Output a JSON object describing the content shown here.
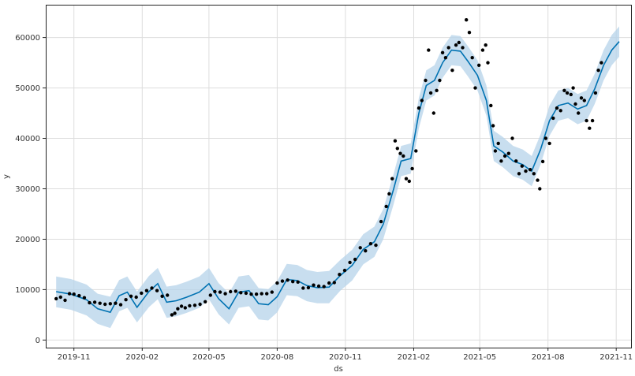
{
  "chart_data": {
    "type": "line",
    "title": "",
    "xlabel": "ds",
    "ylabel": "y",
    "x_range": [
      "2019-09-24",
      "2021-11-21"
    ],
    "ylim": [
      -1500,
      66500
    ],
    "grid": true,
    "x_ticks": [
      {
        "date": "2019-11-01",
        "label": "2019-11"
      },
      {
        "date": "2020-02-01",
        "label": "2020-02"
      },
      {
        "date": "2020-05-01",
        "label": "2020-05"
      },
      {
        "date": "2020-08-01",
        "label": "2020-08"
      },
      {
        "date": "2020-11-01",
        "label": "2020-11"
      },
      {
        "date": "2021-02-01",
        "label": "2021-02"
      },
      {
        "date": "2021-05-01",
        "label": "2021-05"
      },
      {
        "date": "2021-08-01",
        "label": "2021-08"
      },
      {
        "date": "2021-11-01",
        "label": "2021-11"
      }
    ],
    "y_ticks": [
      0,
      10000,
      20000,
      30000,
      40000,
      50000,
      60000
    ],
    "colors": {
      "forecast_line": "#0072b2",
      "uncertainty_band": "#b5d3e9",
      "observations": "#000000"
    },
    "forecast": {
      "x": [
        "2019-10-08",
        "2019-10-28",
        "2019-11-18",
        "2019-12-03",
        "2019-12-20",
        "2020-01-01",
        "2020-01-12",
        "2020-01-25",
        "2020-02-10",
        "2020-02-22",
        "2020-03-05",
        "2020-03-18",
        "2020-04-01",
        "2020-04-18",
        "2020-05-01",
        "2020-05-14",
        "2020-05-28",
        "2020-06-10",
        "2020-06-24",
        "2020-07-07",
        "2020-07-20",
        "2020-08-01",
        "2020-08-14",
        "2020-08-28",
        "2020-09-10",
        "2020-09-24",
        "2020-10-10",
        "2020-10-25",
        "2020-11-10",
        "2020-11-25",
        "2020-12-10",
        "2020-12-22",
        "2021-01-05",
        "2021-01-15",
        "2021-01-28",
        "2021-02-08",
        "2021-02-18",
        "2021-03-01",
        "2021-03-12",
        "2021-03-24",
        "2021-04-05",
        "2021-04-15",
        "2021-04-28",
        "2021-05-10",
        "2021-05-20",
        "2021-06-01",
        "2021-06-15",
        "2021-06-28",
        "2021-07-10",
        "2021-07-22",
        "2021-08-03",
        "2021-08-15",
        "2021-08-28",
        "2021-09-10",
        "2021-09-22",
        "2021-10-03",
        "2021-10-15",
        "2021-10-26",
        "2021-11-05"
      ],
      "yhat": [
        9600,
        9100,
        8000,
        6200,
        5500,
        8800,
        9500,
        6500,
        9600,
        11200,
        7500,
        7800,
        8500,
        9500,
        11200,
        8200,
        6200,
        9500,
        9800,
        7200,
        7000,
        8600,
        12000,
        11800,
        10800,
        10400,
        10500,
        12800,
        14800,
        18000,
        19500,
        23000,
        30000,
        35500,
        36000,
        45000,
        50500,
        51500,
        55000,
        57500,
        57300,
        55300,
        52500,
        47500,
        38500,
        37300,
        35500,
        34800,
        33500,
        37800,
        43500,
        46500,
        47000,
        45800,
        46500,
        49800,
        54500,
        57500,
        59200
      ],
      "lower": [
        6500,
        6000,
        4900,
        3200,
        2400,
        5700,
        6400,
        3500,
        6500,
        8100,
        4400,
        4700,
        5400,
        6400,
        8100,
        5100,
        3100,
        6400,
        6700,
        4100,
        3900,
        5500,
        8900,
        8700,
        7700,
        7300,
        7300,
        9800,
        11800,
        15000,
        16500,
        20000,
        27000,
        32500,
        33000,
        42000,
        47500,
        48500,
        52000,
        54500,
        54300,
        52300,
        49500,
        44500,
        35500,
        34300,
        32500,
        31800,
        30500,
        34800,
        40500,
        43500,
        44000,
        42800,
        43500,
        46800,
        51500,
        54500,
        56200
      ],
      "upper": [
        12600,
        12100,
        11000,
        9200,
        8600,
        11900,
        12600,
        9600,
        12700,
        14300,
        10600,
        10900,
        11600,
        12600,
        14300,
        11300,
        9300,
        12600,
        12900,
        10300,
        10100,
        11700,
        15100,
        14900,
        13900,
        13500,
        13700,
        15900,
        17900,
        21000,
        22500,
        26000,
        33000,
        38500,
        39000,
        48000,
        53500,
        54500,
        58000,
        60500,
        60300,
        58300,
        55500,
        50500,
        41500,
        40300,
        38500,
        37800,
        36500,
        40800,
        46500,
        49500,
        50000,
        48800,
        49500,
        52800,
        57500,
        60500,
        62200
      ]
    },
    "observations": {
      "series_name": "",
      "points": [
        [
          "2019-10-08",
          8200
        ],
        [
          "2019-10-14",
          8500
        ],
        [
          "2019-10-20",
          7900
        ],
        [
          "2019-10-26",
          9200
        ],
        [
          "2019-11-01",
          9100
        ],
        [
          "2019-11-08",
          8800
        ],
        [
          "2019-11-15",
          8400
        ],
        [
          "2019-11-22",
          7400
        ],
        [
          "2019-11-29",
          7500
        ],
        [
          "2019-12-06",
          7300
        ],
        [
          "2019-12-13",
          7100
        ],
        [
          "2019-12-20",
          7200
        ],
        [
          "2019-12-27",
          7300
        ],
        [
          "2020-01-03",
          7000
        ],
        [
          "2020-01-10",
          8000
        ],
        [
          "2020-01-17",
          8700
        ],
        [
          "2020-01-24",
          8500
        ],
        [
          "2020-01-31",
          9300
        ],
        [
          "2020-02-07",
          9800
        ],
        [
          "2020-02-14",
          10300
        ],
        [
          "2020-02-21",
          9800
        ],
        [
          "2020-02-28",
          8700
        ],
        [
          "2020-03-06",
          8900
        ],
        [
          "2020-03-12",
          5000
        ],
        [
          "2020-03-16",
          5300
        ],
        [
          "2020-03-20",
          6200
        ],
        [
          "2020-03-25",
          6700
        ],
        [
          "2020-03-30",
          6400
        ],
        [
          "2020-04-05",
          6800
        ],
        [
          "2020-04-12",
          6900
        ],
        [
          "2020-04-19",
          7100
        ],
        [
          "2020-04-26",
          7600
        ],
        [
          "2020-05-03",
          8900
        ],
        [
          "2020-05-09",
          9600
        ],
        [
          "2020-05-16",
          9500
        ],
        [
          "2020-05-23",
          9200
        ],
        [
          "2020-05-30",
          9600
        ],
        [
          "2020-06-06",
          9700
        ],
        [
          "2020-06-13",
          9400
        ],
        [
          "2020-06-20",
          9300
        ],
        [
          "2020-06-27",
          9100
        ],
        [
          "2020-07-04",
          9100
        ],
        [
          "2020-07-11",
          9200
        ],
        [
          "2020-07-18",
          9200
        ],
        [
          "2020-07-25",
          9500
        ],
        [
          "2020-08-01",
          11300
        ],
        [
          "2020-08-08",
          11700
        ],
        [
          "2020-08-15",
          11900
        ],
        [
          "2020-08-22",
          11600
        ],
        [
          "2020-08-29",
          11500
        ],
        [
          "2020-09-05",
          10300
        ],
        [
          "2020-09-12",
          10400
        ],
        [
          "2020-09-19",
          10900
        ],
        [
          "2020-09-26",
          10700
        ],
        [
          "2020-10-03",
          10600
        ],
        [
          "2020-10-10",
          11300
        ],
        [
          "2020-10-17",
          11400
        ],
        [
          "2020-10-24",
          13000
        ],
        [
          "2020-10-31",
          13800
        ],
        [
          "2020-11-07",
          15400
        ],
        [
          "2020-11-14",
          16000
        ],
        [
          "2020-11-21",
          18300
        ],
        [
          "2020-11-28",
          17700
        ],
        [
          "2020-12-05",
          19100
        ],
        [
          "2020-12-12",
          18800
        ],
        [
          "2020-12-19",
          23500
        ],
        [
          "2020-12-26",
          26500
        ],
        [
          "2020-12-30",
          29000
        ],
        [
          "2021-01-03",
          32000
        ],
        [
          "2021-01-07",
          39500
        ],
        [
          "2021-01-10",
          38000
        ],
        [
          "2021-01-14",
          37000
        ],
        [
          "2021-01-18",
          36500
        ],
        [
          "2021-01-22",
          32000
        ],
        [
          "2021-01-26",
          31500
        ],
        [
          "2021-01-30",
          34000
        ],
        [
          "2021-02-04",
          37500
        ],
        [
          "2021-02-08",
          46000
        ],
        [
          "2021-02-12",
          47500
        ],
        [
          "2021-02-17",
          51500
        ],
        [
          "2021-02-21",
          57500
        ],
        [
          "2021-02-24",
          49000
        ],
        [
          "2021-02-28",
          45000
        ],
        [
          "2021-03-04",
          49500
        ],
        [
          "2021-03-08",
          51500
        ],
        [
          "2021-03-12",
          57000
        ],
        [
          "2021-03-16",
          56000
        ],
        [
          "2021-03-20",
          58000
        ],
        [
          "2021-03-25",
          53500
        ],
        [
          "2021-03-30",
          58500
        ],
        [
          "2021-04-03",
          59000
        ],
        [
          "2021-04-08",
          58000
        ],
        [
          "2021-04-13",
          63500
        ],
        [
          "2021-04-17",
          61000
        ],
        [
          "2021-04-21",
          56000
        ],
        [
          "2021-04-25",
          50000
        ],
        [
          "2021-04-30",
          54500
        ],
        [
          "2021-05-05",
          57500
        ],
        [
          "2021-05-09",
          58500
        ],
        [
          "2021-05-12",
          55000
        ],
        [
          "2021-05-16",
          46500
        ],
        [
          "2021-05-19",
          42500
        ],
        [
          "2021-05-22",
          37500
        ],
        [
          "2021-05-26",
          39000
        ],
        [
          "2021-05-30",
          35500
        ],
        [
          "2021-06-04",
          36500
        ],
        [
          "2021-06-09",
          37000
        ],
        [
          "2021-06-14",
          40000
        ],
        [
          "2021-06-19",
          35500
        ],
        [
          "2021-06-23",
          33000
        ],
        [
          "2021-06-27",
          34500
        ],
        [
          "2021-07-02",
          33500
        ],
        [
          "2021-07-08",
          33800
        ],
        [
          "2021-07-13",
          33000
        ],
        [
          "2021-07-18",
          31700
        ],
        [
          "2021-07-21",
          30000
        ],
        [
          "2021-07-25",
          35400
        ],
        [
          "2021-07-29",
          40000
        ],
        [
          "2021-08-03",
          39000
        ],
        [
          "2021-08-08",
          44000
        ],
        [
          "2021-08-13",
          46000
        ],
        [
          "2021-08-18",
          45500
        ],
        [
          "2021-08-23",
          49500
        ],
        [
          "2021-08-27",
          49000
        ],
        [
          "2021-09-01",
          48700
        ],
        [
          "2021-09-04",
          50000
        ],
        [
          "2021-09-07",
          46800
        ],
        [
          "2021-09-11",
          45000
        ],
        [
          "2021-09-15",
          48000
        ],
        [
          "2021-09-19",
          47500
        ],
        [
          "2021-09-22",
          43500
        ],
        [
          "2021-09-26",
          42000
        ],
        [
          "2021-09-30",
          43500
        ],
        [
          "2021-10-04",
          49000
        ],
        [
          "2021-10-08",
          53500
        ],
        [
          "2021-10-12",
          55000
        ]
      ]
    }
  }
}
